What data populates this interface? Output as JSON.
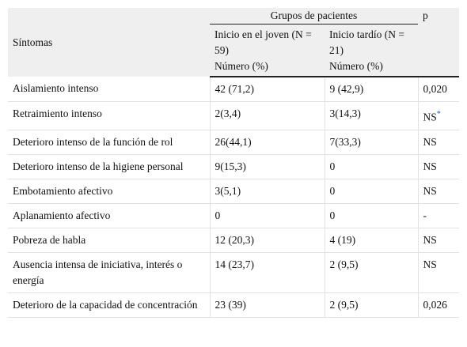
{
  "table": {
    "header": {
      "symptoms": "Síntomas",
      "group": "Grupos de pacientes",
      "p": "p",
      "columns": [
        {
          "name": "Inicio en el joven (N = 59)",
          "unit": "Número (%)"
        },
        {
          "name": "Inicio tardío (N = 21)",
          "unit": "Número (%)"
        }
      ]
    },
    "rows": [
      [
        "Aislamiento intenso",
        "42 (71,2)",
        "9 (42,9)",
        "0,020"
      ],
      [
        "Retraimiento intenso",
        "2(3,4)",
        "3(14,3)",
        {
          "text": "NS",
          "sup": "*"
        }
      ],
      [
        "Deterioro intenso de la función de rol",
        "26(44,1)",
        "7(33,3)",
        "NS"
      ],
      [
        "Deterioro intenso de la higiene personal",
        "9(15,3)",
        "0",
        "NS"
      ],
      [
        "Embotamiento afectivo",
        "3(5,1)",
        "0",
        "NS"
      ],
      [
        "Aplanamiento afectivo",
        "0",
        "0",
        "-"
      ],
      [
        "Pobreza de habla",
        "12 (20,3)",
        "4 (19)",
        "NS"
      ],
      [
        "Ausencia intensa de iniciativa, interés o energía",
        "14 (23,7)",
        "2 (9,5)",
        "NS"
      ],
      [
        "Deterioro de la capacidad de concentración",
        "23 (39)",
        "2 (9,5)",
        "0,026"
      ]
    ]
  }
}
